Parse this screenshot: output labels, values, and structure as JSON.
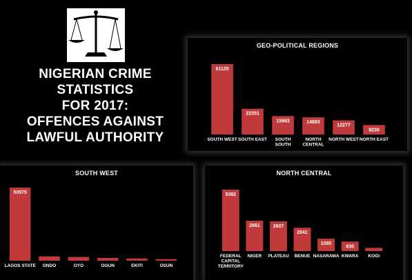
{
  "title": {
    "lines": [
      "NIGERIAN CRIME STATISTICS",
      "FOR 2017:",
      "OFFENCES AGAINST",
      "LAWFUL AUTHORITY"
    ]
  },
  "colors": {
    "bar": "#c0393b",
    "background": "#000000",
    "text": "#ffffff"
  },
  "icons": {
    "logo": "scales-of-justice-icon"
  },
  "chart_data": [
    {
      "id": "geo",
      "type": "bar",
      "title": "GEO-POLITICAL REGIONS",
      "categories": [
        [
          "SOUTH WEST"
        ],
        [
          "SOUTH EAST"
        ],
        [
          "SOUTH",
          "SOUTH"
        ],
        [
          "NORTH",
          "CENTRAL"
        ],
        [
          "NORTH WEST"
        ],
        [
          "NORTH EAST"
        ]
      ],
      "values": [
        61125,
        22351,
        15983,
        14883,
        12277,
        8230
      ],
      "xlabel": "",
      "ylabel": "",
      "grid": false,
      "legend": "none"
    },
    {
      "id": "sw",
      "type": "bar",
      "title": "SOUTH WEST",
      "categories": [
        [
          "LAGOS STATE"
        ],
        [
          "ONDO"
        ],
        [
          "OYO"
        ],
        [
          "OGUN"
        ],
        [
          "EKITI"
        ],
        [
          "OSUN"
        ]
      ],
      "values": [
        50975,
        3000,
        2600,
        1900,
        1500,
        1100
      ],
      "data_labels": [
        "50975",
        "",
        "",
        "",
        "",
        ""
      ],
      "xlabel": "",
      "ylabel": "",
      "grid": false,
      "legend": "none"
    },
    {
      "id": "nc",
      "type": "bar",
      "title": "NORTH CENTRAL",
      "categories": [
        [
          "FEDERAL",
          "CAPITAL",
          "TERRITORY"
        ],
        [
          "NIGER"
        ],
        [
          "PLATEAU"
        ],
        [
          "BENUE"
        ],
        [
          "NASARAWA"
        ],
        [
          "KWARA"
        ],
        [
          "KOGI"
        ]
      ],
      "values": [
        5382,
        2661,
        2607,
        2041,
        1080,
        830,
        282
      ],
      "data_labels": [
        "5382",
        "2661",
        "2607",
        "2041",
        "1080",
        "830",
        ""
      ],
      "xlabel": "",
      "ylabel": "",
      "grid": false,
      "legend": "none"
    }
  ]
}
